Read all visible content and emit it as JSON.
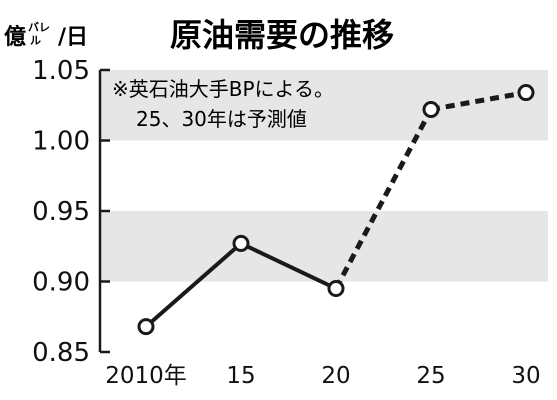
{
  "colors": {
    "band": "#e6e6e6",
    "line": "#1a1a1a",
    "marker_fill": "#ffffff",
    "text": "#111111"
  },
  "chart_data": {
    "type": "line",
    "title": "原油需要の推移",
    "unit": {
      "prefix": "億",
      "small_top": "バレ",
      "small_bottom": "ル",
      "suffix": "/日"
    },
    "ylim": [
      0.85,
      1.05
    ],
    "y_ticks": [
      "1.05",
      "1.00",
      "0.95",
      "0.90",
      "0.85"
    ],
    "x_ticks": [
      "2010年",
      "15",
      "20",
      "25",
      "30"
    ],
    "shaded_bands": [
      [
        0.9,
        0.95
      ],
      [
        1.0,
        1.05
      ]
    ],
    "x": [
      2010,
      2015,
      2020,
      2025,
      2030
    ],
    "values": [
      0.868,
      0.927,
      0.895,
      1.022,
      1.034
    ],
    "projected_from": 2020,
    "note_lines": [
      "※英石油大手BPによる。",
      "25、30年は予測値"
    ]
  }
}
